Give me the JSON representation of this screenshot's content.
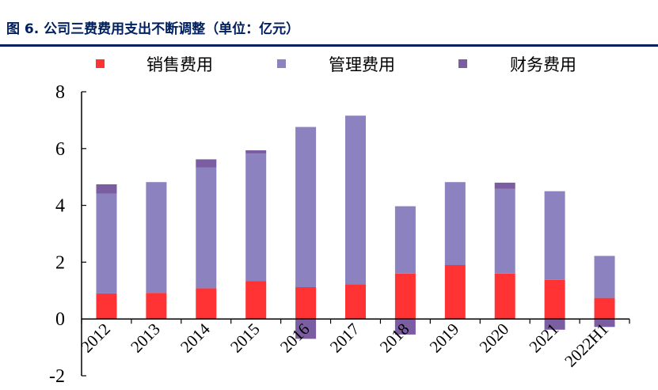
{
  "figure": {
    "title": "图 6. 公司三费费用支出不断调整（单位：亿元）"
  },
  "chart_data": {
    "type": "bar",
    "stacked": true,
    "categories": [
      "2012",
      "2013",
      "2014",
      "2015",
      "2016",
      "2017",
      "2018",
      "2019",
      "2020",
      "2021",
      "2022H1"
    ],
    "series": [
      {
        "name": "销售费用",
        "color": "#FF3333",
        "values": [
          0.9,
          0.92,
          1.08,
          1.34,
          1.12,
          1.22,
          1.6,
          1.9,
          1.6,
          1.38,
          0.74
        ]
      },
      {
        "name": "管理费用",
        "color": "#8C82C0",
        "values": [
          3.52,
          3.9,
          4.26,
          4.48,
          5.64,
          5.94,
          2.37,
          2.92,
          2.98,
          3.12,
          1.48
        ]
      },
      {
        "name": "财务费用",
        "color": "#7B5DA2",
        "values": [
          0.32,
          0.0,
          0.28,
          0.12,
          -0.7,
          0.0,
          -0.55,
          0.0,
          0.22,
          -0.38,
          -0.28
        ]
      }
    ],
    "ylim": [
      -2,
      8
    ],
    "yticks": [
      -2,
      0,
      2,
      4,
      6,
      8
    ],
    "xlabel": "",
    "ylabel": "",
    "legend": "top",
    "grid": false
  }
}
